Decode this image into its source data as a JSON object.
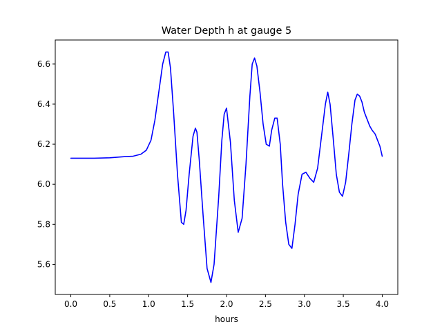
{
  "chart_data": {
    "type": "line",
    "title": "Water Depth h at gauge 5",
    "xlabel": "hours",
    "ylabel": "",
    "xlim": [
      -0.2,
      4.2
    ],
    "ylim": [
      5.45,
      6.72
    ],
    "grid": false,
    "x_ticks": [
      0.0,
      0.5,
      1.0,
      1.5,
      2.0,
      2.5,
      3.0,
      3.5,
      4.0
    ],
    "x_tick_labels": [
      "0.0",
      "0.5",
      "1.0",
      "1.5",
      "2.0",
      "2.5",
      "3.0",
      "3.5",
      "4.0"
    ],
    "y_ticks": [
      5.6,
      5.8,
      6.0,
      6.2,
      6.4,
      6.6
    ],
    "y_tick_labels": [
      "5.6",
      "5.8",
      "6.0",
      "6.2",
      "6.4",
      "6.6"
    ],
    "series": [
      {
        "color": "#0000ff",
        "x": [
          0.0,
          0.3,
          0.5,
          0.6,
          0.7,
          0.8,
          0.9,
          0.97,
          1.03,
          1.08,
          1.13,
          1.18,
          1.22,
          1.25,
          1.28,
          1.32,
          1.37,
          1.42,
          1.45,
          1.48,
          1.52,
          1.57,
          1.6,
          1.62,
          1.65,
          1.7,
          1.75,
          1.8,
          1.84,
          1.9,
          1.94,
          1.97,
          2.0,
          2.05,
          2.1,
          2.15,
          2.2,
          2.25,
          2.3,
          2.33,
          2.36,
          2.39,
          2.43,
          2.47,
          2.51,
          2.55,
          2.58,
          2.62,
          2.65,
          2.69,
          2.72,
          2.76,
          2.8,
          2.84,
          2.88,
          2.92,
          2.97,
          3.02,
          3.07,
          3.12,
          3.17,
          3.22,
          3.27,
          3.3,
          3.33,
          3.37,
          3.41,
          3.45,
          3.49,
          3.53,
          3.57,
          3.61,
          3.65,
          3.68,
          3.71,
          3.74,
          3.77,
          3.8,
          3.84,
          3.87,
          3.91,
          3.94,
          3.97,
          4.0
        ],
        "y": [
          6.13,
          6.13,
          6.132,
          6.135,
          6.138,
          6.14,
          6.15,
          6.17,
          6.22,
          6.32,
          6.46,
          6.6,
          6.66,
          6.66,
          6.58,
          6.36,
          6.05,
          5.81,
          5.8,
          5.87,
          6.05,
          6.24,
          6.28,
          6.26,
          6.12,
          5.84,
          5.58,
          5.51,
          5.6,
          5.94,
          6.22,
          6.35,
          6.38,
          6.21,
          5.92,
          5.76,
          5.83,
          6.1,
          6.44,
          6.6,
          6.63,
          6.59,
          6.46,
          6.3,
          6.2,
          6.19,
          6.27,
          6.33,
          6.33,
          6.2,
          6.0,
          5.81,
          5.7,
          5.68,
          5.8,
          5.95,
          6.05,
          6.06,
          6.03,
          6.01,
          6.08,
          6.24,
          6.4,
          6.46,
          6.4,
          6.23,
          6.05,
          5.96,
          5.94,
          6.01,
          6.15,
          6.3,
          6.42,
          6.45,
          6.44,
          6.41,
          6.36,
          6.33,
          6.29,
          6.27,
          6.25,
          6.22,
          6.19,
          6.14
        ]
      }
    ]
  }
}
